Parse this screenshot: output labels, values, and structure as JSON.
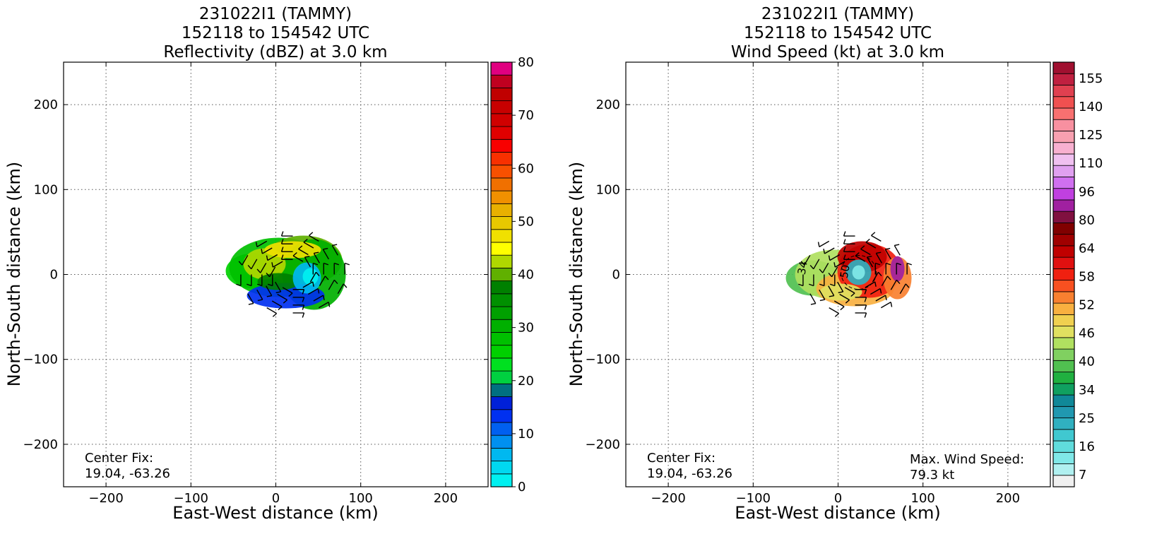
{
  "figure": {
    "background": "#ffffff"
  },
  "panels": [
    {
      "title_lines": [
        "231022I1 (TAMMY)",
        "152118 to 154542 UTC",
        "Reflectivity (dBZ) at 3.0 km"
      ],
      "xlabel": "East-West distance (km)",
      "ylabel": "North-South distance (km)",
      "center_fix": [
        "Center Fix:",
        "19.04, -63.26"
      ],
      "max_wind": null
    },
    {
      "title_lines": [
        "231022I1 (TAMMY)",
        "152118 to 154542 UTC",
        "Wind Speed (kt) at 3.0 km"
      ],
      "xlabel": "East-West distance (km)",
      "ylabel": "North-South distance (km)",
      "center_fix": [
        "Center Fix:",
        "19.04, -63.26"
      ],
      "max_wind": [
        "Max. Wind Speed:",
        "79.3 kt"
      ]
    }
  ],
  "chart_data": [
    {
      "type": "heatmap",
      "title": "231022I1 (TAMMY) 152118 to 154542 UTC Reflectivity (dBZ) at 3.0 km",
      "xlabel": "East-West distance (km)",
      "ylabel": "North-South distance (km)",
      "xlim": [
        -250,
        250
      ],
      "ylim": [
        -250,
        250
      ],
      "xticks": [
        -200,
        -100,
        0,
        100,
        200
      ],
      "yticks": [
        -200,
        -100,
        0,
        100,
        200
      ],
      "grid": true,
      "colorbar": {
        "label_ticks": [
          0,
          10,
          20,
          30,
          40,
          50,
          60,
          70,
          80
        ],
        "boundaries": [
          0,
          2.5,
          5,
          7.5,
          10,
          12.5,
          15,
          17.5,
          20,
          22.5,
          25,
          27.5,
          30,
          32.5,
          35,
          37.5,
          40,
          42.5,
          45,
          47.5,
          50,
          52.5,
          55,
          57.5,
          60,
          62.5,
          65,
          67.5,
          70,
          72.5,
          75,
          77.5,
          80
        ],
        "colors": [
          "#00f0f0",
          "#00d8f0",
          "#00b8f0",
          "#0090f0",
          "#0060f0",
          "#0030f0",
          "#0020d8",
          "#007080",
          "#00d040",
          "#00e020",
          "#00d000",
          "#00c000",
          "#00b000",
          "#00a000",
          "#009000",
          "#008000",
          "#60b000",
          "#b0d800",
          "#ffff00",
          "#f0e000",
          "#e8c800",
          "#e8b000",
          "#f09000",
          "#f07000",
          "#f85000",
          "#f83000",
          "#f80000",
          "#e00000",
          "#d00000",
          "#c80000",
          "#c00000",
          "#c00020",
          "#e00080"
        ]
      },
      "field_description": "spiral rain bands centered near (20, 0) km; strongest (yellow-green 35-40 dBZ) bands north and west of center; weak (blue/cyan) echoes surrounding the eye",
      "wind_barbs": true
    },
    {
      "type": "heatmap",
      "title": "231022I1 (TAMMY) 152118 to 154542 UTC Wind Speed (kt) at 3.0 km",
      "xlabel": "East-West distance (km)",
      "ylabel": "North-South distance (km)",
      "xlim": [
        -250,
        250
      ],
      "ylim": [
        -250,
        250
      ],
      "xticks": [
        -200,
        -100,
        0,
        100,
        200
      ],
      "yticks": [
        -200,
        -100,
        0,
        100,
        200
      ],
      "grid": true,
      "colorbar": {
        "label_ticks": [
          7,
          16,
          25,
          34,
          40,
          46,
          52,
          58,
          64,
          80,
          96,
          110,
          125,
          140,
          155
        ],
        "colors": [
          "#f0f0f0",
          "#b0f0f0",
          "#80e8e8",
          "#60dcdc",
          "#40c8d0",
          "#30b0c0",
          "#2098b0",
          "#108898",
          "#10a060",
          "#20b040",
          "#50c050",
          "#80d060",
          "#b0e060",
          "#e0e060",
          "#f0d050",
          "#f8b040",
          "#f88030",
          "#f85020",
          "#f02010",
          "#e01010",
          "#c00000",
          "#a00000",
          "#800000",
          "#801040",
          "#a020a0",
          "#c040e0",
          "#d070f0",
          "#e0a0f0",
          "#f0c0f0",
          "#f8b0d0",
          "#f8a0b0",
          "#f890a0",
          "#f87070",
          "#f05050",
          "#e04050",
          "#c02040",
          "#a01030"
        ]
      },
      "field_description": "wind speed max in red/dark red ring north and northeast of eye; light blue eye near center; magenta/purple max east of center",
      "contour_labels": [
        "34",
        "34",
        "50"
      ],
      "max_wind_speed_kt": 79.3,
      "wind_barbs": true
    }
  ]
}
